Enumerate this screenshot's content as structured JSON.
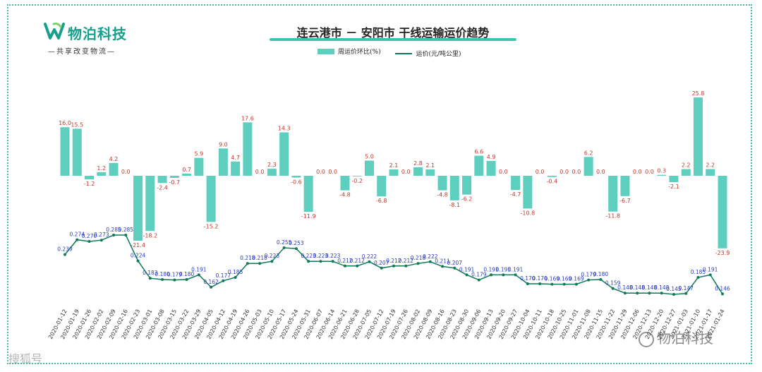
{
  "logo": {
    "name": "物泊科技",
    "slogan": "—共享改变物流—"
  },
  "watermarks": {
    "right": "物泊科技",
    "left": "搜狐号"
  },
  "chart_data": {
    "type": "bar+line",
    "title": "连云港市 － 安阳市 干线运输运价趋势",
    "legend": [
      "周运价环比(%)",
      "运价(元/吨公里)"
    ],
    "legend_position": "top-center",
    "bar_color": "#5ecfbf",
    "line_color": "#0f7a5a",
    "bar_label_color": "#c0392b",
    "line_label_color": "#2a3cc0",
    "grid": false,
    "x_ticks": [
      "2020-01-12",
      "2020-01-19",
      "2020-01-26",
      "2020-02-02",
      "2020-02-09",
      "2020-02-16",
      "2020-02-23",
      "2020-03-01",
      "2020-03-08",
      "2020-03-15",
      "2020-03-22",
      "2020-03-29",
      "2020-04-05",
      "2020-04-12",
      "2020-04-19",
      "2020-04-26",
      "2020-05-03",
      "2020-05-10",
      "2020-05-17",
      "2020-05-24",
      "2020-05-31",
      "2020-06-07",
      "2020-06-14",
      "2020-06-21",
      "2020-06-28",
      "2020-07-05",
      "2020-07-12",
      "2020-07-19",
      "2020-07-26",
      "2020-08-02",
      "2020-08-09",
      "2020-08-16",
      "2020-08-23",
      "2020-08-30",
      "2020-09-06",
      "2020-09-13",
      "2020-09-20",
      "2020-09-27",
      "2020-10-04",
      "2020-10-11",
      "2020-10-18",
      "2020-10-25",
      "2020-11-01",
      "2020-11-08",
      "2020-11-15",
      "2020-11-22",
      "2020-11-29",
      "2020-12-06",
      "2020-12-13",
      "2020-12-20",
      "2020-12-27",
      "2021-01-03",
      "2021-01-10",
      "2021-01-17",
      "2021-01-24"
    ],
    "weekly_change_pct": [
      16.0,
      15.5,
      -1.2,
      1.2,
      4.2,
      0.0,
      -21.4,
      -18.2,
      -2.4,
      -0.7,
      0.7,
      5.9,
      -15.2,
      9.0,
      4.7,
      17.6,
      0.0,
      2.3,
      14.3,
      -0.6,
      -11.9,
      0.0,
      0.0,
      -4.8,
      -0.2,
      5.0,
      -6.8,
      2.1,
      0.0,
      2.8,
      2.1,
      -4.8,
      -8.1,
      -6.2,
      6.6,
      4.9,
      0.0,
      -4.7,
      -10.8,
      0.0,
      -0.4,
      0.0,
      0.0,
      6.2,
      0.0,
      -11.8,
      -6.7,
      0.0,
      0.0,
      0.3,
      -2.1,
      2.2,
      25.8,
      2.2,
      -23.9
    ],
    "weekly_change_labels": [
      "16.0",
      "15.5",
      "-1.2",
      "1.2",
      "4.2",
      "0.0",
      "-21.4",
      "-18.2",
      "-2.4",
      "-0.7",
      "0.7",
      "5.9",
      "-15.2",
      "9.0",
      "4.7",
      "17.6",
      "0.0",
      "2.3",
      "14.3",
      "-0.6",
      "-11.9",
      "0.0",
      "0.0",
      "-4.8",
      "-0.2",
      "5.0",
      "-6.8",
      "2.1",
      "0.0",
      "2.8",
      "2.1",
      "-4.8",
      "-8.1",
      "-6.2",
      "6.6",
      "4.9",
      "0.0",
      "-4.7",
      "-10.8",
      "0.0",
      "-0.4",
      "0.0",
      "0.0",
      "6.2",
      "0.0",
      "-11.8",
      "-6.7",
      "0.0",
      "0.0",
      "0.3",
      "-2.1",
      "2.2",
      "25.8",
      "2.2",
      "-23.9"
    ],
    "price": [
      0.239,
      0.274,
      0.27,
      0.273,
      0.285,
      0.285,
      0.224,
      0.183,
      0.18,
      0.179,
      0.18,
      0.191,
      0.162,
      0.177,
      0.185,
      0.218,
      0.218,
      0.223,
      0.255,
      0.253,
      0.223,
      0.223,
      0.223,
      0.212,
      0.212,
      0.222,
      0.207,
      0.212,
      0.212,
      0.218,
      0.222,
      0.211,
      0.207,
      0.191,
      0.179,
      0.191,
      0.191,
      0.191,
      0.17,
      0.17,
      0.169,
      0.169,
      0.169,
      0.179,
      0.18,
      0.159,
      0.148,
      0.148,
      0.148,
      0.148,
      0.145,
      0.147,
      0.185,
      0.191,
      0.146
    ],
    "price_labels": [
      "0.239",
      "0.274",
      "0.270",
      "0.273",
      "0.285",
      "0.285",
      "0.224",
      "0.183",
      "0.180",
      "0.179",
      "0.180",
      "0.191",
      "0.162",
      "0.177",
      "0.185",
      "0.218",
      "0.218",
      "0.223",
      "0.255",
      "0.253",
      "0.223",
      "0.223",
      "0.223",
      "0.212",
      "0.212",
      "0.222",
      "0.207",
      "0.212",
      "0.212",
      "0.218",
      "0.222",
      "0.211",
      "0.207",
      "0.191",
      "0.179",
      "0.191",
      "0.191",
      "0.191",
      "0.170",
      "0.170",
      "0.169",
      "0.169",
      "0.169",
      "0.179",
      "0.180",
      "0.159",
      "0.148",
      "0.148",
      "0.148",
      "0.148",
      "0.145",
      "0.147",
      "0.185",
      "0.191",
      "0.146"
    ],
    "bar_ylim": [
      -25,
      26
    ],
    "price_ylim": [
      0.14,
      0.29
    ]
  }
}
